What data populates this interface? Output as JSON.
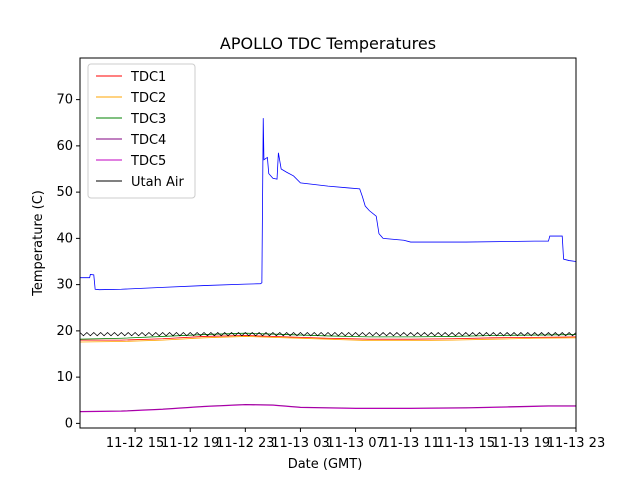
{
  "chart_data": {
    "type": "line",
    "title": "APOLLO TDC Temperatures",
    "xlabel": "Date (GMT)",
    "ylabel": "Temperature (C)",
    "x_unit": "hours since 11-12 11:00 GMT",
    "xlim": [
      0,
      36
    ],
    "ylim": [
      -1,
      79
    ],
    "x_ticks": [
      {
        "x": 4,
        "label": "11-12 15"
      },
      {
        "x": 8,
        "label": "11-12 19"
      },
      {
        "x": 12,
        "label": "11-12 23"
      },
      {
        "x": 16,
        "label": "11-13 03"
      },
      {
        "x": 20,
        "label": "11-13 07"
      },
      {
        "x": 24,
        "label": "11-13 11"
      },
      {
        "x": 28,
        "label": "11-13 15"
      },
      {
        "x": 32,
        "label": "11-13 19"
      },
      {
        "x": 36,
        "label": "11-13 23"
      }
    ],
    "y_ticks": [
      {
        "y": 0,
        "label": "0"
      },
      {
        "y": 10,
        "label": "10"
      },
      {
        "y": 20,
        "label": "20"
      },
      {
        "y": 30,
        "label": "30"
      },
      {
        "y": 40,
        "label": "40"
      },
      {
        "y": 50,
        "label": "50"
      },
      {
        "y": 60,
        "label": "60"
      },
      {
        "y": 70,
        "label": "70"
      }
    ],
    "legend_position": "top-left",
    "series": [
      {
        "name": "TDC1",
        "color": "#ff0000",
        "points": [
          [
            0,
            18.0
          ],
          [
            3,
            18.0
          ],
          [
            6,
            18.3
          ],
          [
            9,
            18.8
          ],
          [
            12,
            19.0
          ],
          [
            15,
            18.7
          ],
          [
            18,
            18.4
          ],
          [
            21,
            18.2
          ],
          [
            24,
            18.2
          ],
          [
            27,
            18.3
          ],
          [
            30,
            18.5
          ],
          [
            33,
            18.6
          ],
          [
            36,
            18.7
          ]
        ]
      },
      {
        "name": "TDC2",
        "color": "#ffa500",
        "points": [
          [
            0,
            17.6
          ],
          [
            3,
            17.7
          ],
          [
            6,
            18.0
          ],
          [
            9,
            18.5
          ],
          [
            12,
            18.8
          ],
          [
            15,
            18.5
          ],
          [
            18,
            18.2
          ],
          [
            21,
            17.9
          ],
          [
            24,
            17.9
          ],
          [
            27,
            18.0
          ],
          [
            30,
            18.2
          ],
          [
            33,
            18.4
          ],
          [
            36,
            18.5
          ]
        ]
      },
      {
        "name": "TDC3",
        "color": "#008000",
        "points": [
          [
            0,
            18.2
          ],
          [
            3,
            18.4
          ],
          [
            6,
            18.8
          ],
          [
            9,
            19.2
          ],
          [
            12,
            19.5
          ],
          [
            15,
            19.2
          ],
          [
            18,
            18.9
          ],
          [
            21,
            18.7
          ],
          [
            24,
            18.7
          ],
          [
            27,
            18.8
          ],
          [
            30,
            19.0
          ],
          [
            33,
            19.1
          ],
          [
            36,
            19.2
          ]
        ]
      },
      {
        "name": "TDC4",
        "color": "#800080",
        "points": [
          [
            0,
            2.6
          ],
          [
            3,
            2.7
          ],
          [
            6,
            3.1
          ],
          [
            9,
            3.7
          ],
          [
            12,
            4.1
          ],
          [
            14,
            4.0
          ],
          [
            16,
            3.5
          ],
          [
            20,
            3.3
          ],
          [
            24,
            3.3
          ],
          [
            28,
            3.4
          ],
          [
            31,
            3.6
          ],
          [
            34,
            3.8
          ],
          [
            36,
            3.8
          ]
        ]
      },
      {
        "name": "TDC5",
        "color": "#c000c0",
        "points": [
          [
            0,
            2.5
          ],
          [
            3,
            2.6
          ],
          [
            6,
            3.0
          ],
          [
            9,
            3.6
          ],
          [
            12,
            4.0
          ],
          [
            14,
            3.9
          ],
          [
            16,
            3.4
          ],
          [
            20,
            3.2
          ],
          [
            24,
            3.2
          ],
          [
            28,
            3.3
          ],
          [
            31,
            3.5
          ],
          [
            34,
            3.7
          ],
          [
            36,
            3.7
          ]
        ]
      },
      {
        "name": "Utah Air",
        "color": "#000000",
        "style": "sawtooth",
        "base": 19.3,
        "amplitude": 0.7,
        "period_hours": 0.5
      },
      {
        "name": "",
        "color": "#0000ff",
        "points": [
          [
            -2,
            31.5
          ],
          [
            0.7,
            31.5
          ],
          [
            0.75,
            32.2
          ],
          [
            1.0,
            32.1
          ],
          [
            1.1,
            29.0
          ],
          [
            1.4,
            28.9
          ],
          [
            3,
            29.0
          ],
          [
            6,
            29.4
          ],
          [
            9,
            29.8
          ],
          [
            12,
            30.1
          ],
          [
            13.1,
            30.2
          ],
          [
            13.2,
            30.4
          ],
          [
            13.3,
            66.0
          ],
          [
            13.35,
            57.0
          ],
          [
            13.6,
            57.5
          ],
          [
            13.7,
            54.0
          ],
          [
            14.0,
            53.0
          ],
          [
            14.3,
            52.8
          ],
          [
            14.4,
            58.5
          ],
          [
            14.6,
            55.0
          ],
          [
            15.0,
            54.3
          ],
          [
            15.5,
            53.5
          ],
          [
            16.0,
            52.0
          ],
          [
            18.0,
            51.3
          ],
          [
            19.5,
            50.9
          ],
          [
            20.3,
            50.7
          ],
          [
            20.5,
            49.0
          ],
          [
            20.7,
            47.0
          ],
          [
            21.0,
            46.0
          ],
          [
            21.5,
            44.8
          ],
          [
            21.7,
            41.0
          ],
          [
            22.0,
            40.0
          ],
          [
            23.5,
            39.6
          ],
          [
            24.0,
            39.2
          ],
          [
            28.0,
            39.2
          ],
          [
            33.0,
            39.4
          ],
          [
            34.0,
            39.4
          ],
          [
            34.1,
            40.5
          ],
          [
            35.0,
            40.5
          ],
          [
            35.1,
            35.5
          ],
          [
            35.5,
            35.2
          ],
          [
            36.0,
            35.0
          ]
        ]
      }
    ]
  }
}
